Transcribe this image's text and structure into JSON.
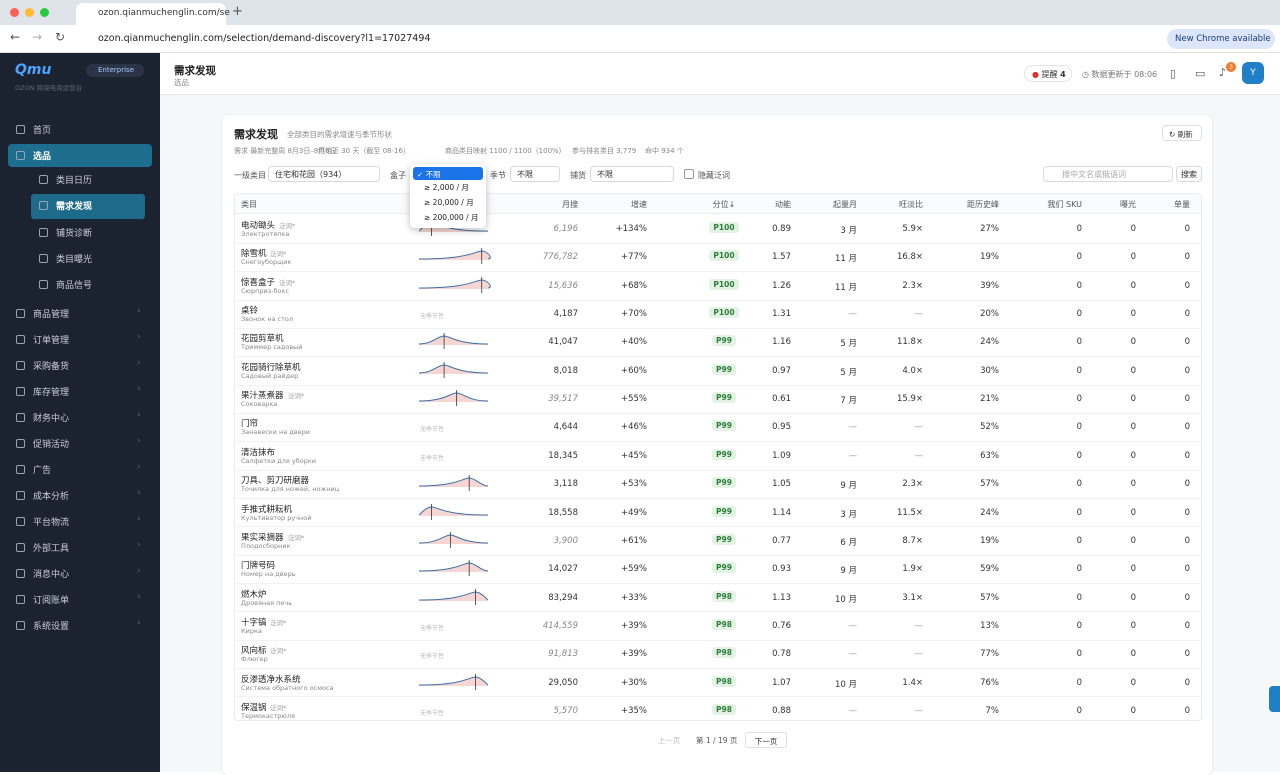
{
  "browser": {
    "tab_title": "ozon.qianmuchenglin.com/se",
    "url": "ozon.qianmuchenglin.com/selection/demand-discovery?l1=17027494",
    "update_button": "New Chrome available"
  },
  "sidebar": {
    "logo": "Qmu",
    "plan": "Enterprise",
    "subtitle": "OZON 跨境电商运营台",
    "menu": [
      "首页",
      "选品",
      "商品管理",
      "订单管理",
      "采购备货",
      "库存管理",
      "财务中心",
      "促销活动",
      "广告",
      "成本分析",
      "平台物流",
      "外部工具",
      "消息中心",
      "订阅账单",
      "系统设置"
    ],
    "submenu": [
      "类目日历",
      "需求发现",
      "铺货诊断",
      "类目曝光",
      "商品信号"
    ],
    "active_menu": 1,
    "active_submenu": 1
  },
  "page_header": {
    "title": "需求发现",
    "breadcrumb": "选品",
    "alerts_label": "提醒",
    "alerts_count": "4",
    "data_updated": "数据更新于 08:06",
    "notification_count": "3",
    "avatar": "Y"
  },
  "card": {
    "title": "需求发现",
    "subtitle": "全部类目的需求增速与季节形状",
    "refresh": "刷新",
    "meta": [
      "需求 最新完整周 8月3日–8月9日",
      "供给近 30 天（截至 08-16）",
      "商品类目映射 1100 / 1100（100%）",
      "参与排名类目 3,779",
      "命中 934 个"
    ]
  },
  "filters": {
    "category_label": "一级类目",
    "category_value": "住宅和花园（934）",
    "box_label": "盒子",
    "box_options": [
      "不限",
      "≥ 2,000 / 月",
      "≥ 20,000 / 月",
      "≥ 200,000 / 月"
    ],
    "season_label": "季节",
    "season_value": "不限",
    "stock_label": "铺货",
    "stock_value": "不限",
    "hide_generic": "隐藏泛词",
    "search_placeholder": "搜中文名或俄语词",
    "search_button": "搜索"
  },
  "table": {
    "columns": [
      "类目",
      "月搜",
      "增速",
      "分位↓",
      "动能",
      "起量月",
      "旺淡比",
      "距历史峰",
      "我们 SKU",
      "曝光",
      "单量"
    ],
    "rows": [
      {
        "name": "电动锄头",
        "tag": "泛词*",
        "ru": "Электротяпка",
        "monthly_search": "6,196",
        "growth": "+134%",
        "percentile": "P100",
        "momentum": "0.89",
        "peak_month": "3 月",
        "peak_ratio": "5.9×",
        "from_peak": "27%",
        "sku": "0",
        "exposure": "0",
        "orders": "0"
      },
      {
        "name": "除雪机",
        "tag": "泛词*",
        "ru": "Снегоуборщик",
        "monthly_search": "776,782",
        "growth": "+77%",
        "percentile": "P100",
        "momentum": "1.57",
        "peak_month": "11 月",
        "peak_ratio": "16.8×",
        "from_peak": "19%",
        "sku": "0",
        "exposure": "0",
        "orders": "0"
      },
      {
        "name": "惊喜盒子",
        "tag": "泛词*",
        "ru": "Сюрприз-бокс",
        "monthly_search": "15,636",
        "growth": "+68%",
        "percentile": "P100",
        "momentum": "1.26",
        "peak_month": "11 月",
        "peak_ratio": "2.3×",
        "from_peak": "39%",
        "sku": "0",
        "exposure": "0",
        "orders": "0"
      },
      {
        "name": "桌铃",
        "ru": "Звонок на стол",
        "season_note": "无季节性",
        "monthly_search": "4,187",
        "growth": "+70%",
        "percentile": "P100",
        "momentum": "1.31",
        "peak_month": "—",
        "peak_ratio": "—",
        "from_peak": "20%",
        "sku": "0",
        "exposure": "0",
        "orders": "0"
      },
      {
        "name": "花园剪草机",
        "ru": "Триммер садовый",
        "monthly_search": "41,047",
        "growth": "+40%",
        "percentile": "P99",
        "momentum": "1.16",
        "peak_month": "5 月",
        "peak_ratio": "11.8×",
        "from_peak": "24%",
        "sku": "0",
        "exposure": "0",
        "orders": "0"
      },
      {
        "name": "花园骑行除草机",
        "ru": "Садовый райдер",
        "monthly_search": "8,018",
        "growth": "+60%",
        "percentile": "P99",
        "momentum": "0.97",
        "peak_month": "5 月",
        "peak_ratio": "4.0×",
        "from_peak": "30%",
        "sku": "0",
        "exposure": "0",
        "orders": "0"
      },
      {
        "name": "果汁蒸煮器",
        "tag": "泛词*",
        "ru": "Соковарка",
        "monthly_search": "39,517",
        "growth": "+55%",
        "percentile": "P99",
        "momentum": "0.61",
        "peak_month": "7 月",
        "peak_ratio": "15.9×",
        "from_peak": "21%",
        "sku": "0",
        "exposure": "0",
        "orders": "0"
      },
      {
        "name": "门帘",
        "ru": "Занавески на двери",
        "season_note": "无季节性",
        "monthly_search": "4,644",
        "growth": "+46%",
        "percentile": "P99",
        "momentum": "0.95",
        "peak_month": "—",
        "peak_ratio": "—",
        "from_peak": "52%",
        "sku": "0",
        "exposure": "0",
        "orders": "0"
      },
      {
        "name": "清洁抹布",
        "ru": "Салфетки для уборки",
        "season_note": "无季节性",
        "monthly_search": "18,345",
        "growth": "+45%",
        "percentile": "P99",
        "momentum": "1.09",
        "peak_month": "—",
        "peak_ratio": "—",
        "from_peak": "63%",
        "sku": "0",
        "exposure": "0",
        "orders": "0"
      },
      {
        "name": "刀具、剪刀研磨器",
        "ru": "Точилка для ножей, ножниц",
        "monthly_search": "3,118",
        "growth": "+53%",
        "percentile": "P99",
        "momentum": "1.05",
        "peak_month": "9 月",
        "peak_ratio": "2.3×",
        "from_peak": "57%",
        "sku": "0",
        "exposure": "0",
        "orders": "0"
      },
      {
        "name": "手推式耕耘机",
        "ru": "Культиватор ручной",
        "monthly_search": "18,558",
        "growth": "+49%",
        "percentile": "P99",
        "momentum": "1.14",
        "peak_month": "3 月",
        "peak_ratio": "11.5×",
        "from_peak": "24%",
        "sku": "0",
        "exposure": "0",
        "orders": "0"
      },
      {
        "name": "果实采摘器",
        "tag": "泛词*",
        "ru": "Плодосборник",
        "monthly_search": "3,900",
        "growth": "+61%",
        "percentile": "P99",
        "momentum": "0.77",
        "peak_month": "6 月",
        "peak_ratio": "8.7×",
        "from_peak": "19%",
        "sku": "0",
        "exposure": "0",
        "orders": "0"
      },
      {
        "name": "门牌号码",
        "ru": "Номер на дверь",
        "monthly_search": "14,027",
        "growth": "+59%",
        "percentile": "P99",
        "momentum": "0.93",
        "peak_month": "9 月",
        "peak_ratio": "1.9×",
        "from_peak": "59%",
        "sku": "0",
        "exposure": "0",
        "orders": "0"
      },
      {
        "name": "燃木炉",
        "ru": "Дровяная печь",
        "monthly_search": "83,294",
        "growth": "+33%",
        "percentile": "P98",
        "momentum": "1.13",
        "peak_month": "10 月",
        "peak_ratio": "3.1×",
        "from_peak": "57%",
        "sku": "0",
        "exposure": "0",
        "orders": "0"
      },
      {
        "name": "十字镐",
        "tag": "泛词*",
        "ru": "Кирка",
        "season_note": "无季节性",
        "monthly_search": "414,559",
        "growth": "+39%",
        "percentile": "P98",
        "momentum": "0.76",
        "peak_month": "—",
        "peak_ratio": "—",
        "from_peak": "13%",
        "sku": "0",
        "exposure": "0",
        "orders": "0"
      },
      {
        "name": "风向标",
        "tag": "泛词*",
        "ru": "Флюгер",
        "season_note": "无季节性",
        "monthly_search": "91,813",
        "growth": "+39%",
        "percentile": "P98",
        "momentum": "0.78",
        "peak_month": "—",
        "peak_ratio": "—",
        "from_peak": "77%",
        "sku": "0",
        "exposure": "0",
        "orders": "0"
      },
      {
        "name": "反渗透净水系统",
        "ru": "Система обратного осмоса",
        "monthly_search": "29,050",
        "growth": "+30%",
        "percentile": "P98",
        "momentum": "1.07",
        "peak_month": "10 月",
        "peak_ratio": "1.4×",
        "from_peak": "76%",
        "sku": "0",
        "exposure": "0",
        "orders": "0"
      },
      {
        "name": "保温锅",
        "tag": "泛词*",
        "ru": "Термокастрюля",
        "season_note": "无季节性",
        "monthly_search": "5,570",
        "growth": "+35%",
        "percentile": "P98",
        "momentum": "0.88",
        "peak_month": "—",
        "peak_ratio": "—",
        "from_peak": "7%",
        "sku": "0",
        "exposure": "0",
        "orders": "0"
      }
    ]
  },
  "pagination": {
    "prev": "上一页",
    "page": "第 1 / 19 页",
    "next": "下一页"
  }
}
